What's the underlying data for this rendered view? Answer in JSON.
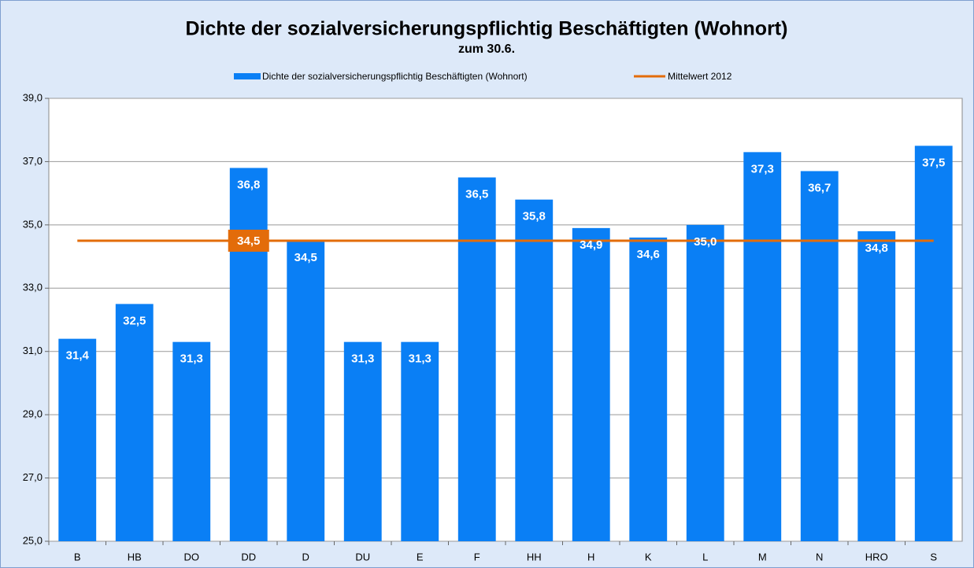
{
  "chart_data": {
    "type": "bar",
    "title": "Dichte der sozialversicherungspflichtig Beschäftigten (Wohnort)",
    "subtitle": "zum 30.6.",
    "categories": [
      "B",
      "HB",
      "DO",
      "DD",
      "D",
      "DU",
      "E",
      "F",
      "HH",
      "H",
      "K",
      "L",
      "M",
      "N",
      "HRO",
      "S"
    ],
    "series": [
      {
        "name": "Dichte der sozialversicherungspflichtig Beschäftigten (Wohnort)",
        "color": "#0a7ff5",
        "values": [
          31.4,
          32.5,
          31.3,
          36.8,
          34.5,
          31.3,
          31.3,
          36.5,
          35.8,
          34.9,
          34.6,
          35.0,
          37.3,
          36.7,
          34.8,
          37.5
        ],
        "value_labels": [
          "31,4",
          "32,5",
          "31,3",
          "36,8",
          "34,5",
          "31,3",
          "31,3",
          "36,5",
          "35,8",
          "34,9",
          "34,6",
          "35,0",
          "37,3",
          "36,7",
          "34,8",
          "37,5"
        ]
      }
    ],
    "mean_line": {
      "name": "Mittelwert 2012",
      "color": "#e36c0a",
      "value": 34.5,
      "value_label": "34,5"
    },
    "ylim": [
      25,
      39
    ],
    "yticks": [
      {
        "value": 25,
        "label": "25,0"
      },
      {
        "value": 27,
        "label": "27,0"
      },
      {
        "value": 29,
        "label": "29,0"
      },
      {
        "value": 31,
        "label": "31,0"
      },
      {
        "value": 33,
        "label": "33,0"
      },
      {
        "value": 35,
        "label": "35,0"
      },
      {
        "value": 37,
        "label": "37,0"
      },
      {
        "value": 39,
        "label": "39,0"
      }
    ],
    "grid": true,
    "legend": "top"
  }
}
